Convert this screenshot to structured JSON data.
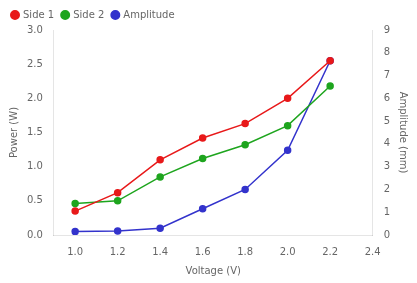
{
  "chart_data": {
    "type": "line",
    "xlabel": "Voltage (V)",
    "ylabel": "Power (W)",
    "y2label": "Amplitude (mm)",
    "x": [
      1.0,
      1.2,
      1.4,
      1.6,
      1.8,
      2.0,
      2.2
    ],
    "series": [
      {
        "name": "Side 1",
        "color": "#e8191a",
        "marker": "circle",
        "values": [
          0.35,
          0.62,
          1.1,
          1.42,
          1.63,
          2.0,
          2.55
        ]
      },
      {
        "name": "Side 2",
        "color": "#1ea51e",
        "marker": "circle",
        "values": [
          0.46,
          0.5,
          0.85,
          1.12,
          1.32,
          1.6,
          2.18
        ]
      },
      {
        "name": "Amplitude",
        "color": "#3333cc",
        "marker": "circle",
        "axis": "y2",
        "values": [
          0.15,
          0.18,
          0.3,
          1.15,
          2.0,
          3.72,
          7.65
        ]
      }
    ],
    "xlim": [
      0.9,
      2.4
    ],
    "xticks": [
      {
        "value": 1.0,
        "label": "1.0"
      },
      {
        "value": 1.2,
        "label": "1.2"
      },
      {
        "value": 1.4,
        "label": "1.4"
      },
      {
        "value": 1.6,
        "label": "1.6"
      },
      {
        "value": 1.8,
        "label": "1.8"
      },
      {
        "value": 2.0,
        "label": "2.0"
      },
      {
        "value": 2.2,
        "label": "2.2"
      },
      {
        "value": 2.4,
        "label": "2.4"
      }
    ],
    "ylim": [
      0,
      3
    ],
    "yticks": [
      {
        "value": 0,
        "label": "0.0"
      },
      {
        "value": 0.5,
        "label": "0.5"
      },
      {
        "value": 1.0,
        "label": "1.0"
      },
      {
        "value": 1.5,
        "label": "1.5"
      },
      {
        "value": 2.0,
        "label": "2.0"
      },
      {
        "value": 2.5,
        "label": "2.5"
      },
      {
        "value": 3.0,
        "label": "3.0"
      }
    ],
    "y2lim": [
      0,
      9
    ],
    "y2ticks": [
      0,
      1,
      2,
      3,
      4,
      5,
      6,
      7,
      8,
      9
    ],
    "grid": false,
    "legend": "upper left"
  }
}
